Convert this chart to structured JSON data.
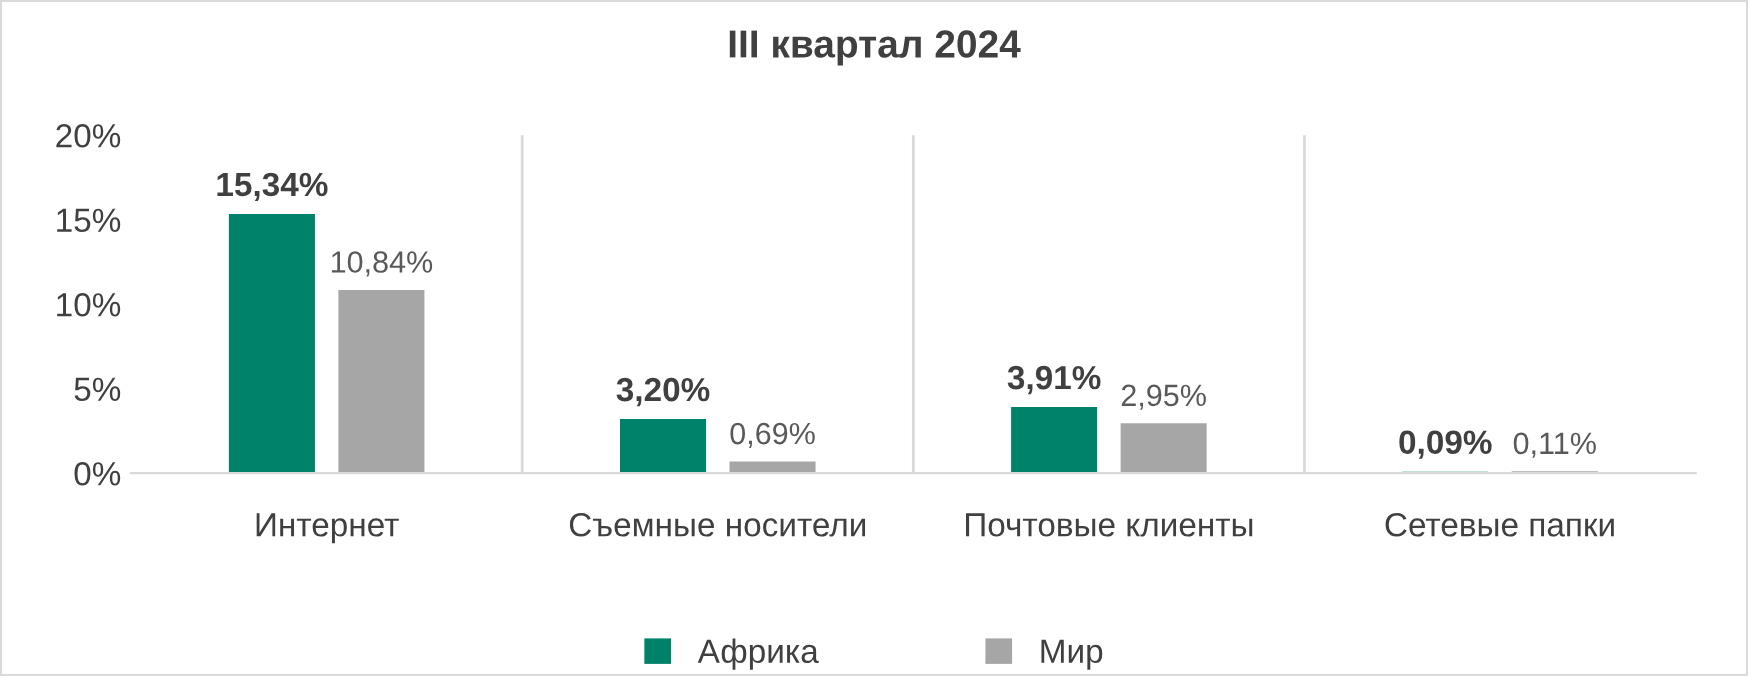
{
  "chart_data": {
    "type": "bar",
    "title": "III квартал 2024",
    "categories": [
      "Интернет",
      "Съемные носители",
      "Почтовые клиенты",
      "Сетевые папки"
    ],
    "series": [
      {
        "name": "Африка",
        "color": "#00826a",
        "values": [
          15.34,
          3.2,
          3.91,
          0.09
        ],
        "value_labels": [
          "15,34%",
          "3,20%",
          "3,91%",
          "0,09%"
        ]
      },
      {
        "name": "Мир",
        "color": "#a6a6a6",
        "values": [
          10.84,
          0.69,
          2.95,
          0.11
        ],
        "value_labels": [
          "10,84%",
          "0,69%",
          "2,95%",
          "0,11%"
        ]
      }
    ],
    "ylim": [
      0,
      20
    ],
    "yticks": [
      {
        "value": 0,
        "label": "0%"
      },
      {
        "value": 5,
        "label": "5%"
      },
      {
        "value": 10,
        "label": "10%"
      },
      {
        "value": 15,
        "label": "15%"
      },
      {
        "value": 20,
        "label": "20%"
      }
    ],
    "grid": "x",
    "legend": "bottom"
  }
}
